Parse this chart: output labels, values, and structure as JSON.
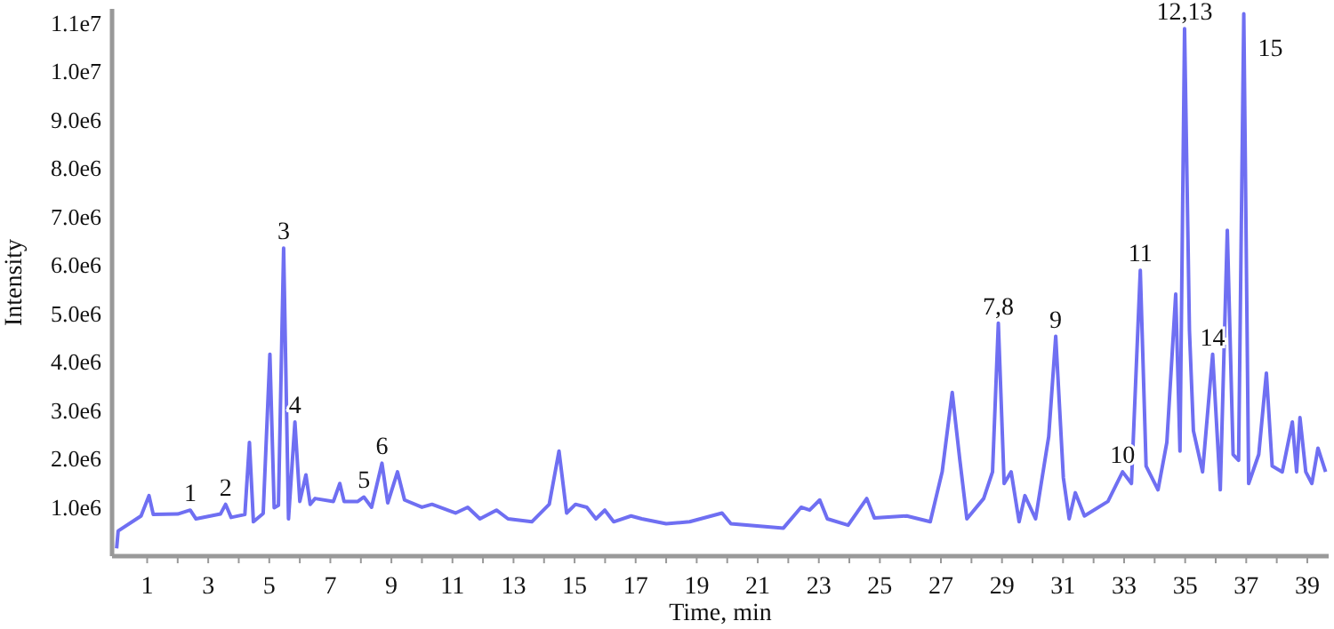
{
  "chart_data": {
    "type": "line",
    "xlabel": "Time, min",
    "ylabel": "Intensity",
    "xlim": [
      -0.15,
      39.7
    ],
    "ylim": [
      0,
      11300000
    ],
    "xticks": [
      1,
      {
        "value": 2,
        "label": null
      },
      3,
      {
        "value": 4,
        "label": null
      },
      5,
      {
        "value": 6,
        "label": null
      },
      7,
      {
        "value": 8,
        "label": null
      },
      9,
      {
        "value": 10,
        "label": null
      },
      11,
      {
        "value": 12,
        "label": null
      },
      13,
      {
        "value": 14,
        "label": null
      },
      15,
      {
        "value": 16,
        "label": null
      },
      17,
      {
        "value": 18,
        "label": null
      },
      19,
      {
        "value": 20,
        "label": null
      },
      21,
      {
        "value": 22,
        "label": null
      },
      23,
      {
        "value": 24,
        "label": null
      },
      25,
      {
        "value": 26,
        "label": null
      },
      27,
      {
        "value": 28,
        "label": null
      },
      29,
      {
        "value": 30,
        "label": null
      },
      31,
      {
        "value": 32,
        "label": null
      },
      33,
      {
        "value": 34,
        "label": null
      },
      35,
      {
        "value": 36,
        "label": null
      },
      37,
      {
        "value": 38,
        "label": null
      },
      39
    ],
    "yticks": [
      {
        "value": 1000000,
        "label": "1.0e6"
      },
      {
        "value": 2000000,
        "label": "2.0e6"
      },
      {
        "value": 3000000,
        "label": "3.0e6"
      },
      {
        "value": 4000000,
        "label": "4.0e6"
      },
      {
        "value": 5000000,
        "label": "5.0e6"
      },
      {
        "value": 6000000,
        "label": "6.0e6"
      },
      {
        "value": 7000000,
        "label": "7.0e6"
      },
      {
        "value": 8000000,
        "label": "8.0e6"
      },
      {
        "value": 9000000,
        "label": "9.0e6"
      },
      {
        "value": 10000000,
        "label": "1.0e7"
      },
      {
        "value": 11000000,
        "label": "1.1e7"
      }
    ],
    "grid": false,
    "marker": "none",
    "line_style": "solid",
    "series": [
      {
        "color": "#6f6ff2",
        "x": [
          0,
          0.05,
          0.8,
          1.06,
          1.2,
          2,
          2.41,
          2.6,
          3.4,
          3.57,
          3.75,
          4.2,
          4.35,
          4.48,
          4.8,
          5.02,
          5.16,
          5.3,
          5.47,
          5.63,
          5.84,
          6,
          6.2,
          6.34,
          6.5,
          7.1,
          7.31,
          7.45,
          7.9,
          8.1,
          8.35,
          8.69,
          8.88,
          9.2,
          9.43,
          10,
          10.33,
          11.1,
          11.5,
          11.9,
          12.44,
          12.82,
          13.6,
          14.17,
          14.49,
          14.74,
          15.03,
          15.4,
          15.7,
          15.99,
          16.28,
          16.85,
          17.2,
          18,
          18.77,
          19.83,
          20.12,
          21.84,
          22.42,
          22.7,
          23.03,
          23.28,
          23.96,
          24.57,
          24.82,
          25.88,
          26.65,
          27.04,
          27.37,
          27.62,
          27.85,
          28.4,
          28.69,
          28.88,
          29.07,
          29.3,
          29.56,
          29.75,
          30.1,
          30.53,
          30.76,
          31.01,
          31.2,
          31.4,
          31.7,
          32.47,
          32.95,
          33.24,
          33.53,
          33.72,
          34.11,
          34.4,
          34.69,
          34.83,
          34.98,
          35.14,
          35.27,
          35.57,
          35.9,
          36.15,
          36.38,
          36.57,
          36.75,
          36.92,
          37.08,
          37.41,
          37.66,
          37.85,
          38.18,
          38.51,
          38.65,
          38.76,
          38.95,
          39.15,
          39.35,
          39.6
        ],
        "values": [
          160000,
          520000,
          830000,
          1250000,
          860000,
          870000,
          950000,
          770000,
          870000,
          1070000,
          800000,
          860000,
          2350000,
          710000,
          880000,
          4170000,
          1000000,
          1050000,
          6360000,
          770000,
          2770000,
          1130000,
          1680000,
          1070000,
          1190000,
          1130000,
          1500000,
          1130000,
          1130000,
          1220000,
          1010000,
          1920000,
          1100000,
          1740000,
          1160000,
          1010000,
          1070000,
          890000,
          1010000,
          770000,
          950000,
          770000,
          710000,
          1070000,
          2170000,
          890000,
          1070000,
          1010000,
          770000,
          950000,
          710000,
          830000,
          770000,
          670000,
          710000,
          890000,
          670000,
          580000,
          1010000,
          950000,
          1160000,
          770000,
          640000,
          1190000,
          790000,
          830000,
          710000,
          1740000,
          3380000,
          1980000,
          770000,
          1190000,
          1740000,
          4810000,
          1500000,
          1740000,
          710000,
          1250000,
          770000,
          2470000,
          4540000,
          1620000,
          770000,
          1310000,
          830000,
          1130000,
          1740000,
          1500000,
          5900000,
          1860000,
          1370000,
          2350000,
          5410000,
          2170000,
          10890000,
          4660000,
          2590000,
          1740000,
          4170000,
          1370000,
          6730000,
          2100000,
          1980000,
          11200000,
          1500000,
          2100000,
          3780000,
          1860000,
          1740000,
          2770000,
          1740000,
          2860000,
          1740000,
          1500000,
          2230000,
          1740000
        ]
      }
    ],
    "annotations": [
      {
        "text": "1",
        "x": 2.41,
        "y": 950000
      },
      {
        "text": "2",
        "x": 3.57,
        "y": 1070000
      },
      {
        "text": "3",
        "x": 5.47,
        "y": 6360000
      },
      {
        "text": "4",
        "x": 5.84,
        "y": 2770000
      },
      {
        "text": "5",
        "x": 8.1,
        "y": 1220000
      },
      {
        "text": "6",
        "x": 8.69,
        "y": 1920000
      },
      {
        "text": "7,8",
        "x": 28.88,
        "y": 4810000
      },
      {
        "text": "9",
        "x": 30.76,
        "y": 4540000
      },
      {
        "text": "10",
        "x": 32.95,
        "y": 1740000
      },
      {
        "text": "11",
        "x": 33.53,
        "y": 5900000
      },
      {
        "text": "12,13",
        "x": 34.98,
        "y": 10890000
      },
      {
        "text": "14",
        "x": 35.9,
        "y": 4170000
      },
      {
        "text": "15",
        "x": 36.92,
        "y": 11200000
      }
    ]
  }
}
